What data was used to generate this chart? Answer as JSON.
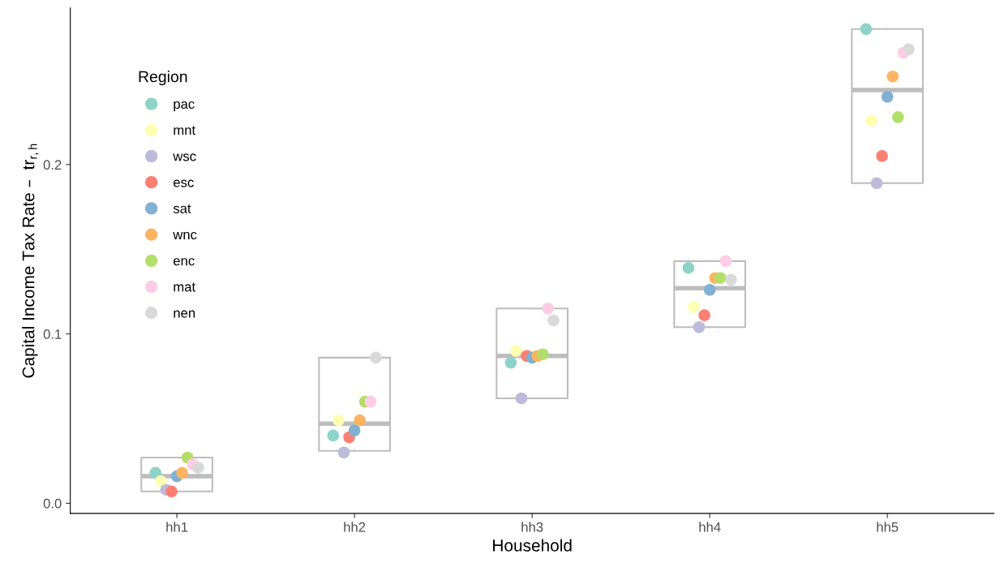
{
  "chart_data": {
    "type": "box",
    "xlabel": "Household",
    "ylabel": "Capital Income Tax Rate –  tr$_{r,h}$",
    "legend_title": "Region",
    "legend": "top left",
    "grid": false,
    "marker": "circle",
    "categories": [
      "hh1",
      "hh2",
      "hh3",
      "hh4",
      "hh5"
    ],
    "ylim": [
      -0.006,
      0.2925
    ],
    "yticks": [
      {
        "value": 0,
        "label": "0.0"
      },
      0.1,
      0.2
    ],
    "boxes": [
      {
        "low": 0.007,
        "q1": 0.007,
        "median": 0.016,
        "q3": 0.027,
        "high": 0.027
      },
      {
        "low": 0.031,
        "q1": 0.031,
        "median": 0.047,
        "q3": 0.086,
        "high": 0.086
      },
      {
        "low": 0.062,
        "q1": 0.062,
        "median": 0.087,
        "q3": 0.115,
        "high": 0.115
      },
      {
        "low": 0.104,
        "q1": 0.104,
        "median": 0.127,
        "q3": 0.143,
        "high": 0.143
      },
      {
        "low": 0.189,
        "q1": 0.189,
        "median": 0.244,
        "q3": 0.28,
        "high": 0.28
      }
    ],
    "series": [
      {
        "name": "pac",
        "type": "scatter",
        "color": "#8dd3c7",
        "x": [
          "hh1",
          "hh2",
          "hh3",
          "hh4",
          "hh5"
        ],
        "values": [
          0.018,
          0.04,
          0.083,
          0.139,
          0.28
        ]
      },
      {
        "name": "mnt",
        "type": "scatter",
        "color": "#ffffb3",
        "x": [
          "hh1",
          "hh2",
          "hh3",
          "hh4",
          "hh5"
        ],
        "values": [
          0.013,
          0.049,
          0.09,
          0.116,
          0.226
        ]
      },
      {
        "name": "wsc",
        "type": "scatter",
        "color": "#bebada",
        "x": [
          "hh1",
          "hh2",
          "hh3",
          "hh4",
          "hh5"
        ],
        "values": [
          0.008,
          0.03,
          0.062,
          0.104,
          0.189
        ]
      },
      {
        "name": "esc",
        "type": "scatter",
        "color": "#fb8072",
        "x": [
          "hh1",
          "hh2",
          "hh3",
          "hh4",
          "hh5"
        ],
        "values": [
          0.007,
          0.039,
          0.087,
          0.111,
          0.205
        ]
      },
      {
        "name": "sat",
        "type": "scatter",
        "color": "#80b1d3",
        "x": [
          "hh1",
          "hh2",
          "hh3",
          "hh4",
          "hh5"
        ],
        "values": [
          0.016,
          0.043,
          0.086,
          0.126,
          0.24
        ]
      },
      {
        "name": "wnc",
        "type": "scatter",
        "color": "#fdb462",
        "x": [
          "hh1",
          "hh2",
          "hh3",
          "hh4",
          "hh5"
        ],
        "values": [
          0.018,
          0.049,
          0.087,
          0.133,
          0.252
        ]
      },
      {
        "name": "enc",
        "type": "scatter",
        "color": "#b3de69",
        "x": [
          "hh1",
          "hh2",
          "hh3",
          "hh4",
          "hh5"
        ],
        "values": [
          0.027,
          0.06,
          0.088,
          0.133,
          0.228
        ]
      },
      {
        "name": "mat",
        "type": "scatter",
        "color": "#fccde5",
        "x": [
          "hh1",
          "hh2",
          "hh3",
          "hh4",
          "hh5"
        ],
        "values": [
          0.023,
          0.06,
          0.115,
          0.143,
          0.266
        ]
      },
      {
        "name": "nen",
        "type": "scatter",
        "color": "#d9d9d9",
        "x": [
          "hh1",
          "hh2",
          "hh3",
          "hh4",
          "hh5"
        ],
        "values": [
          0.021,
          0.086,
          0.108,
          0.132,
          0.268
        ]
      }
    ]
  }
}
